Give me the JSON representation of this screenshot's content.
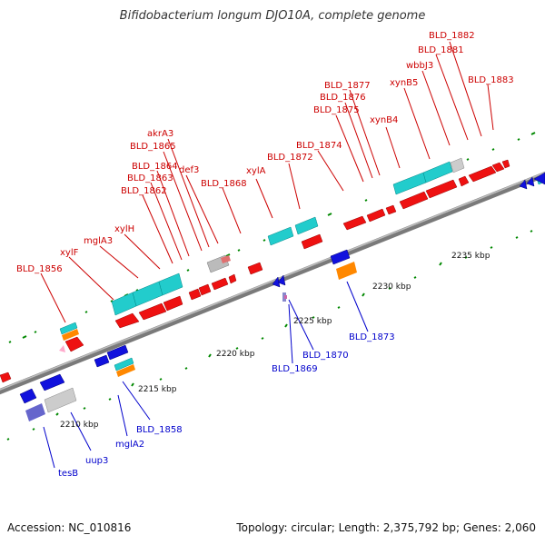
{
  "header": {
    "title": "Bifidobacterium longum DJO10A, complete genome"
  },
  "footer": {
    "accession": "Accession: NC_010816",
    "summary": "Topology: circular; Length: 2,375,792 bp; Genes: 2,060"
  },
  "colors": {
    "forward_cds": "#ff0000",
    "reverse_cds": "#0000ff",
    "rna": "#00cccc",
    "orange": "#ff8800",
    "grey": "#aaaaaa",
    "backbone": "#888888",
    "tick": "#009900",
    "label_red": "#cc0000",
    "label_blue": "#0000cc"
  },
  "scale_labels": [
    "2210 kbp",
    "2215 kbp",
    "2220 kbp",
    "2225 kbp",
    "2230 kbp",
    "2235 kbp"
  ],
  "top_labels": [
    "BLD_1856",
    "xylF",
    "mglA3",
    "xylH",
    "BLD_1862",
    "BLD_1863",
    "BLD_1864",
    "BLD_1865",
    "akrA3",
    "def3",
    "BLD_1868",
    "xylA",
    "BLD_1872",
    "BLD_1874",
    "BLD_1875",
    "BLD_1876",
    "BLD_1877",
    "xynB4",
    "xynB5",
    "wbbJ3",
    "BLD_1881",
    "BLD_1882",
    "BLD_1883"
  ],
  "bottom_labels": [
    "tesB",
    "uup3",
    "mglA2",
    "BLD_1858",
    "BLD_1869",
    "BLD_1870",
    "BLD_1873"
  ]
}
